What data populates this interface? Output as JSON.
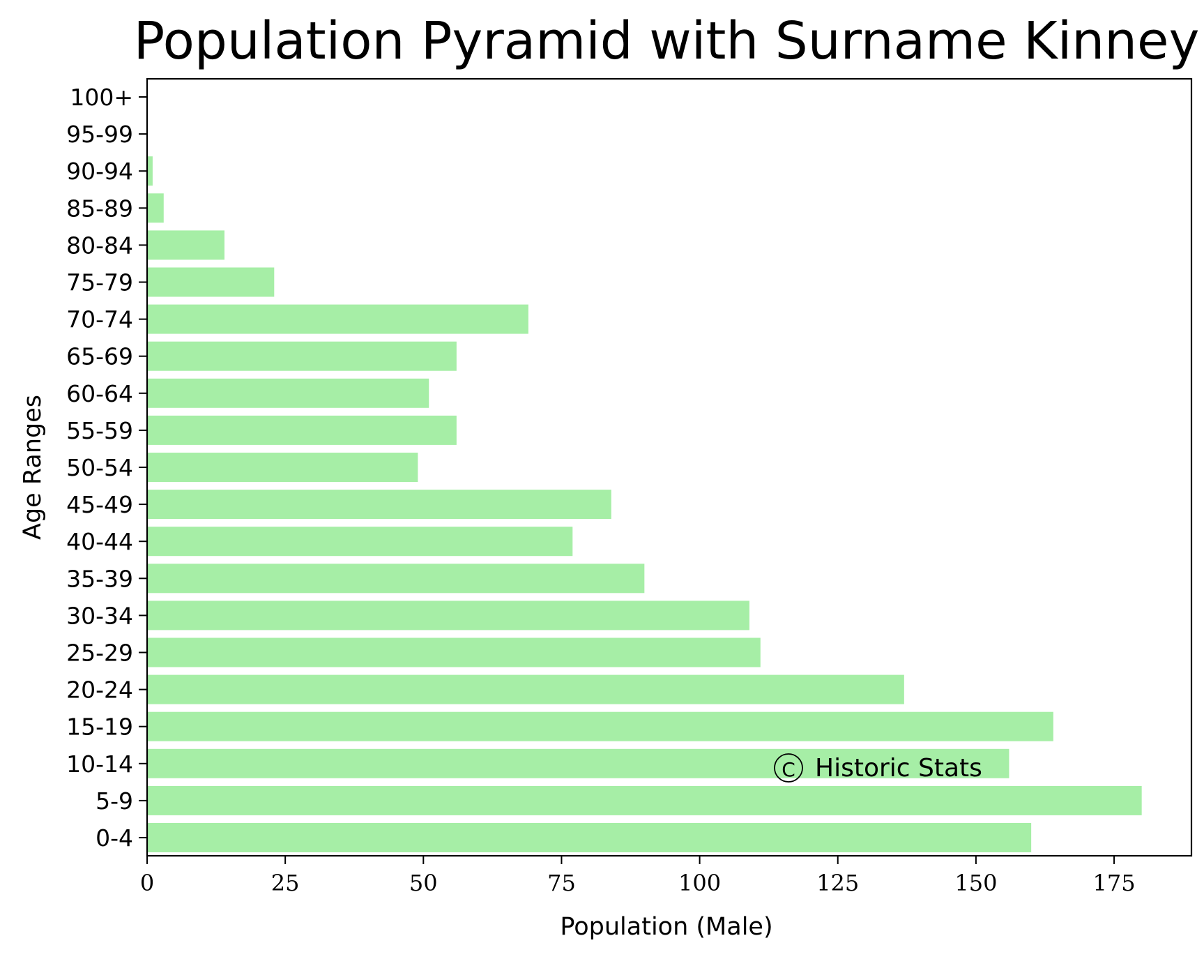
{
  "chart_data": {
    "type": "bar",
    "orientation": "horizontal",
    "title": "Population Pyramid with Surname Kinney",
    "xlabel": "Population (Male)",
    "ylabel": "Age Ranges",
    "categories": [
      "0-4",
      "5-9",
      "10-14",
      "15-19",
      "20-24",
      "25-29",
      "30-34",
      "35-39",
      "40-44",
      "45-49",
      "50-54",
      "55-59",
      "60-64",
      "65-69",
      "70-74",
      "75-79",
      "80-84",
      "85-89",
      "90-94",
      "95-99",
      "100+"
    ],
    "values": [
      160,
      180,
      156,
      164,
      137,
      111,
      109,
      90,
      77,
      84,
      49,
      56,
      51,
      56,
      69,
      23,
      14,
      3,
      1,
      0,
      0
    ],
    "xlim": [
      0,
      189
    ],
    "xticks": [
      0,
      25,
      50,
      75,
      100,
      125,
      150,
      175
    ],
    "bar_color": "#a6eea6",
    "grid": false,
    "legend": "none"
  },
  "watermark": {
    "symbol": "©",
    "text": "Historic Stats"
  }
}
